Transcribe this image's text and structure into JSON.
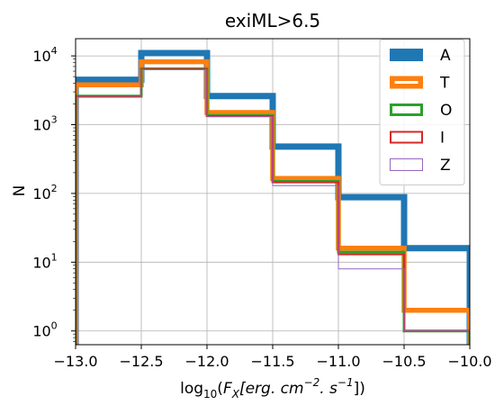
{
  "chart_data": {
    "type": "histogram-step",
    "title": "exiML>6.5",
    "ylabel": "N",
    "xlabel_parts": {
      "log": "log",
      "base": "10",
      "open": "(",
      "symbol": "F",
      "symbol_sub": "X",
      "unit_a": "[erg. cm",
      "exp_a": "−2",
      "unit_b": ". s",
      "exp_b": "−1",
      "close": "])"
    },
    "xlim": [
      -13.0,
      -10.0
    ],
    "ylim_log10": [
      -0.2,
      4.25
    ],
    "yscale": "log",
    "grid": true,
    "legend_position": "top-right",
    "x_ticks": [
      {
        "value": -13.0,
        "label": "−13.0"
      },
      {
        "value": -12.5,
        "label": "−12.5"
      },
      {
        "value": -12.0,
        "label": "−12.0"
      },
      {
        "value": -11.5,
        "label": "−11.5"
      },
      {
        "value": -11.0,
        "label": "−11.0"
      },
      {
        "value": -10.5,
        "label": "−10.5"
      },
      {
        "value": -10.0,
        "label": "−10.0"
      }
    ],
    "y_ticks": [
      {
        "value": 1,
        "base": "10",
        "exp": "0"
      },
      {
        "value": 10,
        "base": "10",
        "exp": "1"
      },
      {
        "value": 100,
        "base": "10",
        "exp": "2"
      },
      {
        "value": 1000,
        "base": "10",
        "exp": "3"
      },
      {
        "value": 10000,
        "base": "10",
        "exp": "4"
      }
    ],
    "bin_edges": [
      -13.0,
      -12.5,
      -12.0,
      -11.5,
      -11.0,
      -10.5,
      -10.0
    ],
    "series": [
      {
        "name": "A",
        "color": "#1f77b4",
        "linewidth": 7,
        "values": [
          4500,
          11000,
          2600,
          480,
          88,
          16
        ]
      },
      {
        "name": "T",
        "color": "#ff7f0e",
        "linewidth": 5.5,
        "values": [
          3800,
          8200,
          1500,
          165,
          16,
          2
        ]
      },
      {
        "name": "O",
        "color": "#2ca02c",
        "linewidth": 3,
        "values": [
          2600,
          6500,
          1350,
          150,
          14,
          1
        ]
      },
      {
        "name": "I",
        "color": "#d62728",
        "linewidth": 2,
        "values": [
          2550,
          6400,
          1330,
          145,
          13,
          1
        ]
      },
      {
        "name": "Z",
        "color": "#9467bd",
        "linewidth": 1,
        "values": [
          2500,
          6300,
          1300,
          130,
          8,
          1
        ]
      }
    ]
  }
}
